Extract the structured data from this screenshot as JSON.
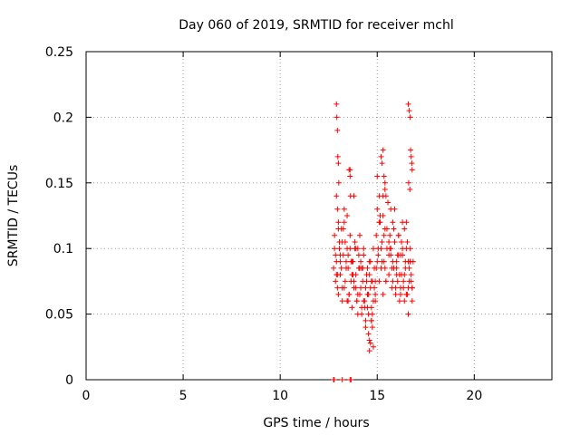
{
  "chart_data": {
    "type": "scatter",
    "title": "Day 060 of 2019, SRMTID for receiver mchl",
    "xlabel": "GPS time / hours",
    "ylabel": "SRMTID / TECUs",
    "xlim": [
      0,
      24
    ],
    "ylim": [
      0,
      0.25
    ],
    "xticks": [
      0,
      5,
      10,
      15,
      20
    ],
    "xtick_labels": [
      "0",
      "5",
      "10",
      "15",
      "20"
    ],
    "yticks": [
      0,
      0.05,
      0.1,
      0.15,
      0.2,
      0.25
    ],
    "ytick_labels": [
      "0",
      "0.05",
      "0.1",
      "0.15",
      "0.2",
      "0.25"
    ],
    "grid": true,
    "marker": "+",
    "color": "#ff0000",
    "series": [
      {
        "name": "SRMTID",
        "x": [
          12.75,
          12.8,
          12.85,
          12.9,
          12.95,
          13.0,
          13.05,
          13.1,
          13.15,
          13.2,
          13.25,
          13.3,
          13.35,
          13.4,
          13.45,
          13.5,
          13.55,
          13.6,
          13.65,
          13.7,
          13.75,
          13.8,
          13.85,
          13.9,
          13.95,
          14.0,
          14.05,
          14.1,
          14.15,
          14.2,
          14.25,
          14.3,
          14.35,
          14.4,
          14.45,
          14.5,
          14.55,
          14.6,
          14.65,
          14.7,
          14.75,
          14.8,
          14.85,
          14.9,
          14.95,
          15.0,
          15.05,
          15.1,
          15.15,
          15.2,
          15.25,
          15.3,
          15.35,
          15.4,
          15.45,
          15.5,
          15.55,
          15.6,
          15.65,
          15.7,
          15.75,
          15.8,
          15.85,
          15.9,
          15.95,
          16.0,
          16.05,
          16.1,
          16.15,
          16.2,
          16.25,
          16.3,
          16.35,
          16.4,
          16.45,
          16.5,
          16.55,
          16.6,
          16.65,
          16.7,
          16.75,
          16.8,
          16.85,
          12.8,
          12.9,
          13.0,
          13.1,
          13.2,
          13.3,
          13.4,
          13.5,
          13.6,
          13.7,
          13.8,
          13.9,
          14.0,
          14.1,
          14.2,
          14.3,
          14.4,
          14.5,
          14.6,
          14.7,
          14.8,
          14.9,
          15.0,
          15.1,
          15.2,
          15.3,
          15.4,
          15.5,
          15.6,
          15.7,
          15.8,
          15.9,
          16.0,
          16.1,
          16.2,
          16.3,
          16.4,
          16.5,
          16.6,
          16.7,
          16.8,
          12.85,
          12.95,
          13.05,
          13.15,
          13.25,
          13.35,
          13.45,
          13.55,
          13.65,
          13.75,
          13.85,
          13.95,
          14.05,
          14.15,
          14.25,
          14.35,
          14.45,
          14.55,
          14.65,
          14.75,
          14.85,
          14.95,
          15.05,
          15.15,
          15.25,
          15.35,
          15.45,
          15.55,
          15.65,
          15.75,
          15.85,
          15.95,
          16.05,
          16.15,
          16.25,
          16.35,
          16.45,
          16.55,
          16.65,
          16.75,
          12.9,
          13.0,
          13.1,
          13.3,
          13.5,
          13.7,
          13.9,
          14.1,
          14.3,
          14.5,
          14.7,
          14.9,
          15.1,
          15.3,
          15.5,
          15.7,
          15.9,
          16.1,
          16.3,
          16.5,
          16.7,
          12.95,
          13.2,
          13.45,
          13.6,
          13.8,
          14.0,
          14.2,
          14.4,
          14.6,
          14.8,
          15.0,
          15.2,
          15.4,
          15.6,
          15.8,
          16.0,
          16.2,
          16.4,
          16.6,
          16.8,
          12.9,
          12.92,
          12.95,
          12.97,
          13.0,
          13.02,
          13.55,
          13.6,
          13.62,
          14.55,
          14.6,
          14.65,
          14.7,
          14.75,
          15.25,
          15.3,
          15.35,
          15.4,
          15.45,
          16.6,
          16.65,
          16.7,
          16.72,
          16.75,
          16.78,
          16.8,
          16.62,
          16.68,
          12.75,
          12.78,
          13.2,
          13.6,
          13.65
        ],
        "y": [
          0.085,
          0.11,
          0.075,
          0.09,
          0.13,
          0.065,
          0.1,
          0.08,
          0.115,
          0.06,
          0.095,
          0.07,
          0.105,
          0.09,
          0.125,
          0.085,
          0.065,
          0.1,
          0.075,
          0.055,
          0.09,
          0.07,
          0.1,
          0.08,
          0.06,
          0.05,
          0.085,
          0.065,
          0.09,
          0.055,
          0.075,
          0.1,
          0.06,
          0.045,
          0.08,
          0.065,
          0.05,
          0.09,
          0.07,
          0.055,
          0.075,
          0.1,
          0.085,
          0.06,
          0.11,
          0.13,
          0.095,
          0.075,
          0.12,
          0.085,
          0.105,
          0.065,
          0.09,
          0.115,
          0.075,
          0.1,
          0.135,
          0.08,
          0.11,
          0.095,
          0.07,
          0.12,
          0.085,
          0.105,
          0.065,
          0.09,
          0.075,
          0.11,
          0.06,
          0.095,
          0.08,
          0.1,
          0.07,
          0.115,
          0.085,
          0.065,
          0.105,
          0.09,
          0.075,
          0.1,
          0.08,
          0.07,
          0.09,
          0.1,
          0.08,
          0.12,
          0.095,
          0.07,
          0.13,
          0.085,
          0.06,
          0.11,
          0.09,
          0.075,
          0.1,
          0.065,
          0.085,
          0.05,
          0.095,
          0.07,
          0.055,
          0.08,
          0.045,
          0.06,
          0.075,
          0.09,
          0.12,
          0.1,
          0.14,
          0.085,
          0.115,
          0.095,
          0.13,
          0.075,
          0.105,
          0.085,
          0.11,
          0.065,
          0.095,
          0.08,
          0.12,
          0.07,
          0.09,
          0.06,
          0.095,
          0.07,
          0.105,
          0.085,
          0.115,
          0.075,
          0.1,
          0.065,
          0.09,
          0.08,
          0.105,
          0.06,
          0.095,
          0.07,
          0.085,
          0.055,
          0.075,
          0.065,
          0.09,
          0.05,
          0.07,
          0.085,
          0.1,
          0.125,
          0.09,
          0.11,
          0.075,
          0.135,
          0.1,
          0.085,
          0.115,
          0.07,
          0.095,
          0.08,
          0.105,
          0.075,
          0.09,
          0.065,
          0.085,
          0.075,
          0.14,
          0.115,
          0.09,
          0.12,
          0.095,
          0.08,
          0.07,
          0.11,
          0.06,
          0.085,
          0.075,
          0.065,
          0.14,
          0.125,
          0.115,
          0.1,
          0.13,
          0.095,
          0.12,
          0.1,
          0.09,
          0.08,
          0.105,
          0.06,
          0.16,
          0.14,
          0.1,
          0.085,
          0.04,
          0.03,
          0.025,
          0.155,
          0.17,
          0.145,
          0.105,
          0.09,
          0.08,
          0.07,
          0.06,
          0.05,
          0.07,
          0.21,
          0.2,
          0.19,
          0.17,
          0.165,
          0.15,
          0.16,
          0.155,
          0.14,
          0.035,
          0.022,
          0.028,
          0.045,
          0.04,
          0.165,
          0.175,
          0.155,
          0.15,
          0.14,
          0.21,
          0.205,
          0.2,
          0.175,
          0.17,
          0.165,
          0.16,
          0.15,
          0.145,
          0.0,
          0.0,
          0.0,
          0.0,
          0.0
        ]
      }
    ]
  }
}
